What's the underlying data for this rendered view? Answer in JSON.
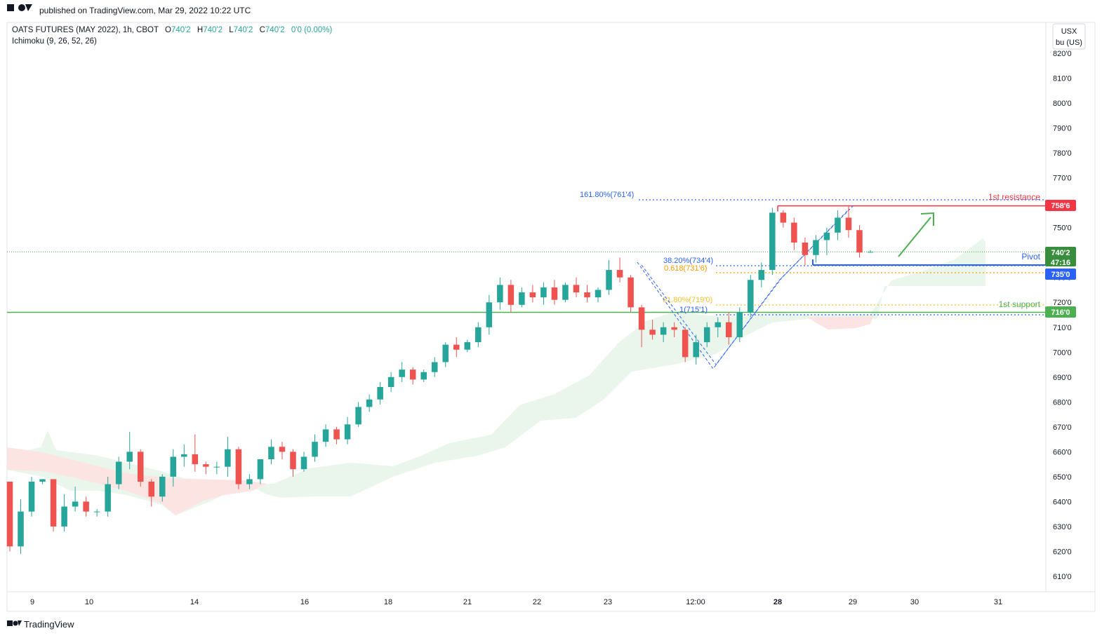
{
  "header": {
    "published": "published on TradingView.com, Mar 29, 2022 10:22 UTC",
    "symbol_line": {
      "symbol": "OATS FUTURES (MAY 2022), 1h, CBOT",
      "o_label": "O",
      "o_value": "740'2",
      "h_label": "H",
      "h_value": "740'2",
      "l_label": "L",
      "l_value": "740'2",
      "c_label": "C",
      "c_value": "740'2",
      "change": "0'0 (0.00%)"
    },
    "indicator": "Ichimoku (9, 26, 52, 26)"
  },
  "price_scale": {
    "currency": "USX",
    "unit": "bu (US)",
    "ticks": [
      "820'0",
      "810'0",
      "800'0",
      "790'0",
      "780'0",
      "770'0",
      "760'0",
      "750'0",
      "740'0",
      "730'0",
      "720'0",
      "710'0",
      "700'0",
      "690'0",
      "680'0",
      "670'0",
      "660'0",
      "650'0",
      "640'0",
      "630'0",
      "620'0",
      "610'0"
    ],
    "badges": {
      "resistance": "758'6",
      "current": "740'2",
      "countdown": "47:16",
      "pivot": "735'0",
      "support": "716'0"
    }
  },
  "time_scale": [
    "9",
    "10",
    "14",
    "16",
    "18",
    "21",
    "22",
    "23",
    "12:00",
    "28",
    "29",
    "30",
    "31"
  ],
  "annotations": {
    "resistance_label": "1st resistance",
    "pivot_label": "Pivot",
    "support_label": "1st support",
    "fib_1618": "161.80%(761'4)",
    "fib_382": "38.20%(734'4)",
    "fib_0618": "0.618(731'6)",
    "fib_618": "61.80%(719'0)",
    "fib_1": "1(715'1)"
  },
  "footer": {
    "brand": "TradingView"
  },
  "colors": {
    "up": "#26a69a",
    "down": "#ef5350",
    "green_line": "#4caf50",
    "resistance": "#f23645",
    "pivot": "#2962ff",
    "fib_blue": "#2962ff",
    "fib_orange": "#ff9800",
    "fib_yellow": "#fbc02d",
    "cloud_green": "#e8f5e9",
    "cloud_red": "#fde3e3",
    "current_badge": "#388e3c"
  },
  "chart_data": {
    "type": "candlestick",
    "title": "OATS FUTURES (MAY 2022), 1h, CBOT",
    "ylim": [
      605,
      825
    ],
    "levels": {
      "resistance": 758.75,
      "pivot": 735,
      "support": 716,
      "last": 740.25
    },
    "candles_approx": [
      [
        648,
        648,
        620,
        622
      ],
      [
        622,
        641,
        619,
        636
      ],
      [
        636,
        650,
        634,
        648
      ],
      [
        648,
        649,
        647,
        649
      ],
      [
        649,
        649,
        628,
        630
      ],
      [
        630,
        643,
        628,
        638
      ],
      [
        638,
        646,
        636,
        640
      ],
      [
        640,
        642,
        634,
        636
      ],
      [
        636,
        637,
        634,
        636
      ],
      [
        636,
        650,
        634,
        647
      ],
      [
        647,
        658,
        645,
        656
      ],
      [
        656,
        668,
        653,
        660
      ],
      [
        660,
        661,
        646,
        648
      ],
      [
        648,
        649,
        638,
        642
      ],
      [
        642,
        651,
        640,
        650
      ],
      [
        650,
        661,
        646,
        658
      ],
      [
        658,
        663,
        654,
        659
      ],
      [
        659,
        667,
        652,
        655
      ],
      [
        655,
        656,
        651,
        654
      ],
      [
        654,
        656,
        651,
        654
      ],
      [
        654,
        666,
        650,
        661
      ],
      [
        661,
        662,
        645,
        647
      ],
      [
        647,
        651,
        645,
        649
      ],
      [
        649,
        657,
        647,
        657
      ],
      [
        657,
        665,
        655,
        662
      ],
      [
        662,
        664,
        657,
        660
      ],
      [
        660,
        661,
        650,
        653
      ],
      [
        653,
        660,
        652,
        658
      ],
      [
        658,
        667,
        656,
        664
      ],
      [
        664,
        671,
        662,
        669
      ],
      [
        669,
        670,
        663,
        665
      ],
      [
        665,
        674,
        663,
        671
      ],
      [
        671,
        680,
        670,
        678
      ],
      [
        678,
        683,
        676,
        681
      ],
      [
        681,
        688,
        679,
        686
      ],
      [
        686,
        692,
        684,
        690
      ],
      [
        690,
        696,
        688,
        693
      ],
      [
        693,
        694,
        687,
        689
      ],
      [
        689,
        693,
        688,
        692
      ],
      [
        692,
        698,
        690,
        696
      ],
      [
        696,
        704,
        694,
        703
      ],
      [
        703,
        706,
        698,
        701
      ],
      [
        701,
        705,
        700,
        704
      ],
      [
        704,
        712,
        702,
        710
      ],
      [
        710,
        723,
        707,
        720
      ],
      [
        720,
        730,
        717,
        727
      ],
      [
        727,
        729,
        716,
        719
      ],
      [
        719,
        726,
        718,
        724
      ],
      [
        724,
        727,
        720,
        722
      ],
      [
        722,
        728,
        719,
        726
      ],
      [
        726,
        729,
        719,
        721
      ],
      [
        721,
        728,
        720,
        727
      ],
      [
        727,
        730,
        722,
        724
      ],
      [
        724,
        727,
        720,
        722
      ],
      [
        722,
        726,
        720,
        725
      ],
      [
        725,
        737,
        723,
        733
      ],
      [
        733,
        738,
        728,
        730
      ],
      [
        730,
        731,
        716,
        718
      ],
      [
        718,
        719,
        702,
        709
      ],
      [
        709,
        713,
        705,
        707
      ],
      [
        707,
        712,
        704,
        710
      ],
      [
        710,
        712,
        706,
        709
      ],
      [
        709,
        710,
        696,
        698
      ],
      [
        698,
        707,
        695,
        704
      ],
      [
        704,
        712,
        702,
        710
      ],
      [
        710,
        714,
        706,
        712
      ],
      [
        712,
        716,
        703,
        706
      ],
      [
        706,
        718,
        704,
        716
      ],
      [
        716,
        731,
        714,
        729
      ],
      [
        729,
        736,
        726,
        733
      ],
      [
        733,
        758,
        731,
        756
      ],
      [
        756,
        757,
        750,
        752
      ],
      [
        752,
        754,
        741,
        744
      ],
      [
        744,
        746,
        735,
        739
      ],
      [
        739,
        747,
        736,
        745
      ],
      [
        745,
        750,
        739,
        748
      ],
      [
        748,
        757,
        745,
        754
      ],
      [
        754,
        759,
        746,
        749
      ],
      [
        749,
        751,
        738,
        740
      ],
      [
        740,
        741,
        740,
        740.25
      ]
    ]
  }
}
